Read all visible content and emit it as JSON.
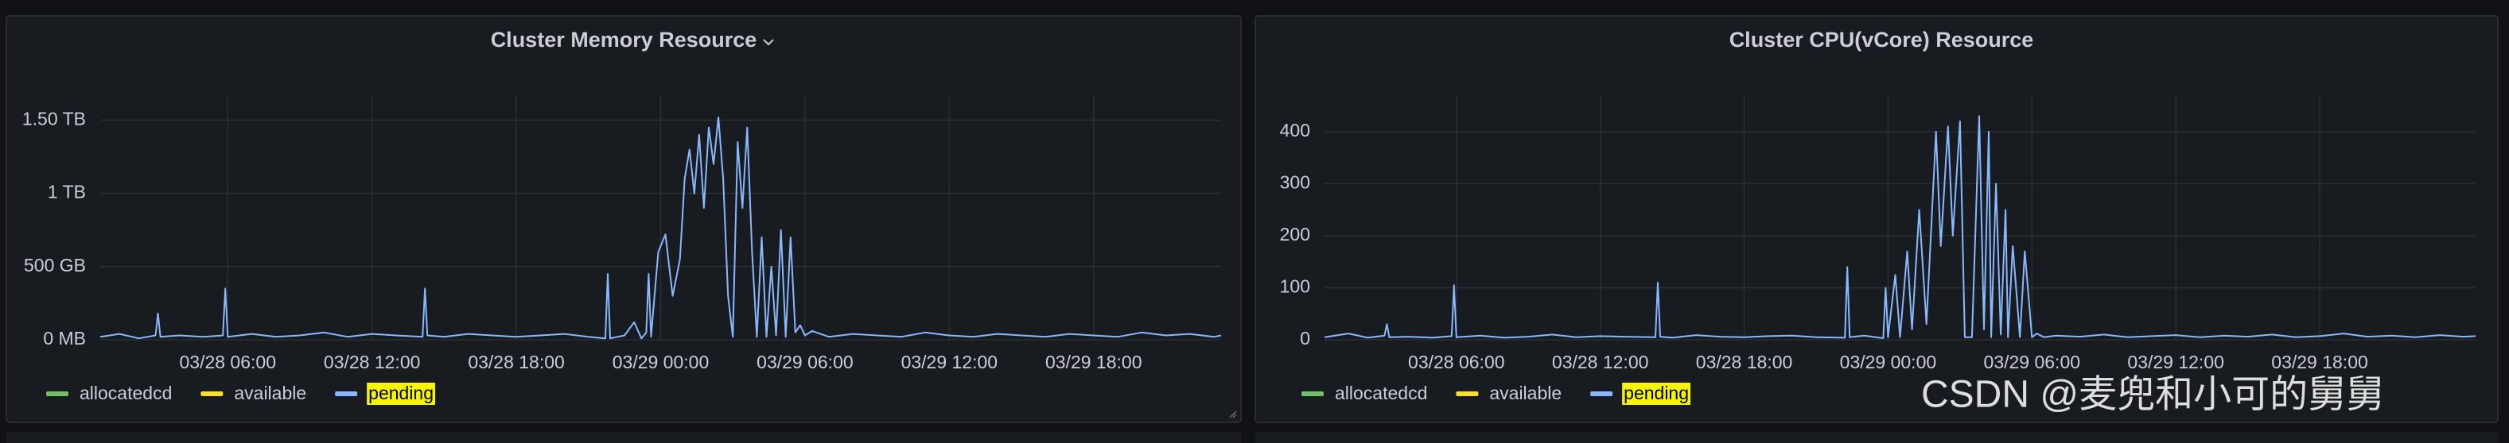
{
  "chart_data": [
    {
      "type": "line",
      "title": "Cluster Memory Resource",
      "x": [
        0.7,
        1.5,
        2.3,
        3.0,
        3.1,
        3.2,
        4,
        5,
        5.8,
        5.9,
        6.0,
        7,
        8,
        9,
        10,
        11,
        12,
        13,
        14.1,
        14.2,
        14.3,
        15,
        16,
        17,
        18,
        19,
        20,
        21,
        21.7,
        21.8,
        21.9,
        22.5,
        22.9,
        23.2,
        23.4,
        23.5,
        23.6,
        23.9,
        24.2,
        24.5,
        24.8,
        25.0,
        25.2,
        25.4,
        25.6,
        25.8,
        26.0,
        26.2,
        26.4,
        26.6,
        26.8,
        27.0,
        27.2,
        27.4,
        27.6,
        27.8,
        28.0,
        28.2,
        28.4,
        28.6,
        28.8,
        29.0,
        29.2,
        29.4,
        29.6,
        29.8,
        30.0,
        30.3,
        31,
        32,
        33,
        34,
        35,
        36,
        37,
        38,
        39,
        40,
        41,
        42,
        43,
        44,
        45,
        46,
        47,
        47.3
      ],
      "series": [
        {
          "name": "allocatedcd",
          "color": "#73bf69"
        },
        {
          "name": "available",
          "color": "#fade2a"
        },
        {
          "name": "pending",
          "color": "#8ab8ff",
          "highlighted": true,
          "values": [
            0.02,
            0.04,
            0.01,
            0.03,
            0.18,
            0.02,
            0.03,
            0.02,
            0.03,
            0.35,
            0.02,
            0.04,
            0.02,
            0.03,
            0.05,
            0.02,
            0.04,
            0.03,
            0.02,
            0.35,
            0.03,
            0.02,
            0.04,
            0.03,
            0.02,
            0.03,
            0.04,
            0.02,
            0.01,
            0.45,
            0.01,
            0.03,
            0.12,
            0.01,
            0.05,
            0.45,
            0.02,
            0.6,
            0.72,
            0.3,
            0.55,
            1.1,
            1.3,
            1.0,
            1.4,
            0.9,
            1.45,
            1.2,
            1.52,
            1.1,
            0.3,
            0.02,
            1.35,
            0.9,
            1.45,
            0.6,
            0.02,
            0.7,
            0.02,
            0.5,
            0.03,
            0.75,
            0.02,
            0.7,
            0.05,
            0.1,
            0.03,
            0.06,
            0.02,
            0.04,
            0.03,
            0.02,
            0.05,
            0.03,
            0.02,
            0.04,
            0.03,
            0.02,
            0.04,
            0.03,
            0.02,
            0.05,
            0.03,
            0.04,
            0.02,
            0.03
          ]
        }
      ],
      "xlim": [
        0.7,
        47.3
      ],
      "xticks": [
        {
          "value": 6,
          "label": "03/28 06:00"
        },
        {
          "value": 12,
          "label": "03/28 12:00"
        },
        {
          "value": 18,
          "label": "03/28 18:00"
        },
        {
          "value": 24,
          "label": "03/29 00:00"
        },
        {
          "value": 30,
          "label": "03/29 06:00"
        },
        {
          "value": 36,
          "label": "03/29 12:00"
        },
        {
          "value": 42,
          "label": "03/29 18:00"
        }
      ],
      "ylim": [
        0,
        1.67
      ],
      "yticks": [
        {
          "value": 0,
          "label": "0 MB"
        },
        {
          "value": 0.5,
          "label": "500 GB"
        },
        {
          "value": 1,
          "label": "1 TB"
        },
        {
          "value": 1.5,
          "label": "1.50 TB"
        }
      ],
      "grid": true
    },
    {
      "type": "line",
      "title": "Cluster CPU(vCore) Resource",
      "x": [
        0.5,
        1.5,
        2.3,
        3.0,
        3.1,
        3.2,
        4,
        5,
        5.8,
        5.9,
        6.0,
        7,
        8,
        9,
        10,
        11,
        12,
        13,
        14.3,
        14.4,
        14.5,
        15,
        16,
        17,
        18,
        19,
        20,
        21,
        22.2,
        22.3,
        22.4,
        23,
        23.8,
        23.9,
        24.0,
        24.3,
        24.5,
        24.8,
        25.0,
        25.3,
        25.6,
        26.0,
        26.2,
        26.5,
        26.7,
        27.0,
        27.2,
        27.5,
        27.8,
        28.0,
        28.2,
        28.3,
        28.5,
        28.7,
        28.9,
        29.0,
        29.2,
        29.5,
        29.7,
        30.0,
        30.2,
        30.5,
        31,
        32,
        33,
        34,
        35,
        36,
        37,
        38,
        39,
        40,
        41,
        42,
        43,
        44,
        45,
        46,
        47,
        48,
        48.5
      ],
      "series": [
        {
          "name": "allocatedcd",
          "color": "#73bf69"
        },
        {
          "name": "available",
          "color": "#fade2a"
        },
        {
          "name": "pending",
          "color": "#8ab8ff",
          "highlighted": true,
          "values": [
            5,
            12,
            4,
            8,
            30,
            5,
            6,
            4,
            7,
            105,
            5,
            8,
            4,
            6,
            10,
            5,
            7,
            6,
            5,
            110,
            6,
            4,
            9,
            6,
            5,
            7,
            8,
            5,
            4,
            140,
            5,
            8,
            3,
            100,
            5,
            125,
            5,
            170,
            20,
            250,
            30,
            400,
            180,
            410,
            200,
            420,
            5,
            5,
            430,
            20,
            400,
            5,
            300,
            10,
            250,
            5,
            180,
            5,
            170,
            5,
            12,
            5,
            8,
            6,
            10,
            5,
            7,
            9,
            5,
            8,
            6,
            10,
            5,
            7,
            12,
            6,
            8,
            5,
            9,
            6,
            7
          ]
        }
      ],
      "xlim": [
        0.5,
        48.5
      ],
      "xticks": [
        {
          "value": 6,
          "label": "03/28 06:00"
        },
        {
          "value": 12,
          "label": "03/28 12:00"
        },
        {
          "value": 18,
          "label": "03/28 18:00"
        },
        {
          "value": 24,
          "label": "03/29 00:00"
        },
        {
          "value": 30,
          "label": "03/29 06:00"
        },
        {
          "value": 36,
          "label": "03/29 12:00"
        },
        {
          "value": 42,
          "label": "03/29 18:00"
        }
      ],
      "ylim": [
        0,
        470
      ],
      "yticks": [
        0,
        100,
        200,
        300,
        400
      ],
      "grid": true
    }
  ],
  "watermark": "CSDN @麦兜和小可的舅舅"
}
